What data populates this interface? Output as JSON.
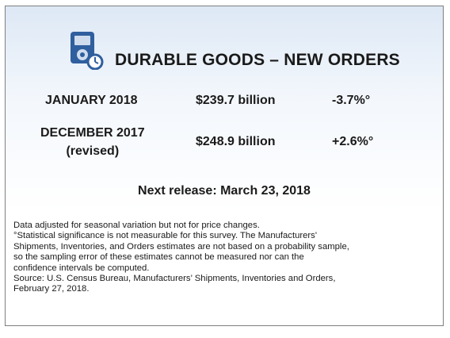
{
  "header": {
    "icon": "media-player-clock-icon",
    "title": "DURABLE GOODS – NEW ORDERS"
  },
  "rows": [
    {
      "label": "JANUARY 2018",
      "value": "$239.7 billion",
      "change": "-3.7%°"
    },
    {
      "label": "DECEMBER 2017",
      "sublabel": "(revised)",
      "value": "$248.9 billion",
      "change": "+2.6%°"
    }
  ],
  "next_release": "Next release: March 23, 2018",
  "notes": [
    "Data adjusted for seasonal variation but not for price changes.",
    "°Statistical significance is not measurable for this survey.  The Manufacturers'",
    "Shipments, Inventories, and Orders estimates are not based on a probability sample,",
    "so the sampling error of these estimates cannot be measured nor can the",
    "confidence intervals be computed.",
    "Source: U.S. Census Bureau, Manufacturers’ Shipments, Inventories and Orders,",
    "February 27, 2018."
  ],
  "colors": {
    "icon_blue": "#2f5f9e",
    "gradient_top": "#dde8f5"
  }
}
